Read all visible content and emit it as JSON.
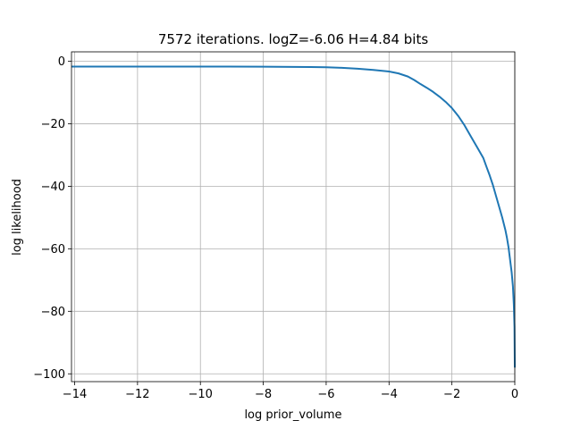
{
  "chart_data": {
    "type": "line",
    "title": "7572 iterations. logZ=-6.06 H=4.84 bits",
    "xlabel": "log prior_volume",
    "ylabel": "log likelihood",
    "xlim": [
      -14.1,
      0.0
    ],
    "ylim": [
      -102.5,
      3.0
    ],
    "xticks": [
      -14,
      -12,
      -10,
      -8,
      -6,
      -4,
      -2,
      0
    ],
    "xtick_labels": [
      "−14",
      "−12",
      "−10",
      "−8",
      "−6",
      "−4",
      "−2",
      "0"
    ],
    "yticks": [
      0,
      -20,
      -40,
      -60,
      -80,
      -100
    ],
    "ytick_labels": [
      "0",
      "−20",
      "−40",
      "−60",
      "−80",
      "−100"
    ],
    "grid": true,
    "series": [
      {
        "color": "#1f77b4",
        "x": [
          -14.1,
          -12,
          -10,
          -8,
          -6.5,
          -6,
          -5.5,
          -5,
          -4.5,
          -4,
          -3.7,
          -3.4,
          -3.2,
          -3.0,
          -2.8,
          -2.6,
          -2.4,
          -2.2,
          -2.0,
          -1.8,
          -1.6,
          -1.4,
          -1.2,
          -1.0,
          -0.9,
          -0.8,
          -0.7,
          -0.6,
          -0.5,
          -0.4,
          -0.3,
          -0.25,
          -0.2,
          -0.15,
          -0.1,
          -0.06,
          -0.03,
          -0.01,
          0.0
        ],
        "y": [
          -1.7,
          -1.7,
          -1.7,
          -1.75,
          -1.85,
          -1.95,
          -2.1,
          -2.4,
          -2.8,
          -3.3,
          -3.9,
          -4.9,
          -6.0,
          -7.3,
          -8.5,
          -9.8,
          -11.3,
          -13.0,
          -15.0,
          -17.5,
          -20.5,
          -24.0,
          -27.5,
          -31.0,
          -33.8,
          -36.5,
          -39.5,
          -43.0,
          -46.5,
          -50.0,
          -54.0,
          -56.5,
          -59.5,
          -63.5,
          -67.5,
          -72.0,
          -78.0,
          -85.0,
          -98.0
        ]
      }
    ]
  }
}
